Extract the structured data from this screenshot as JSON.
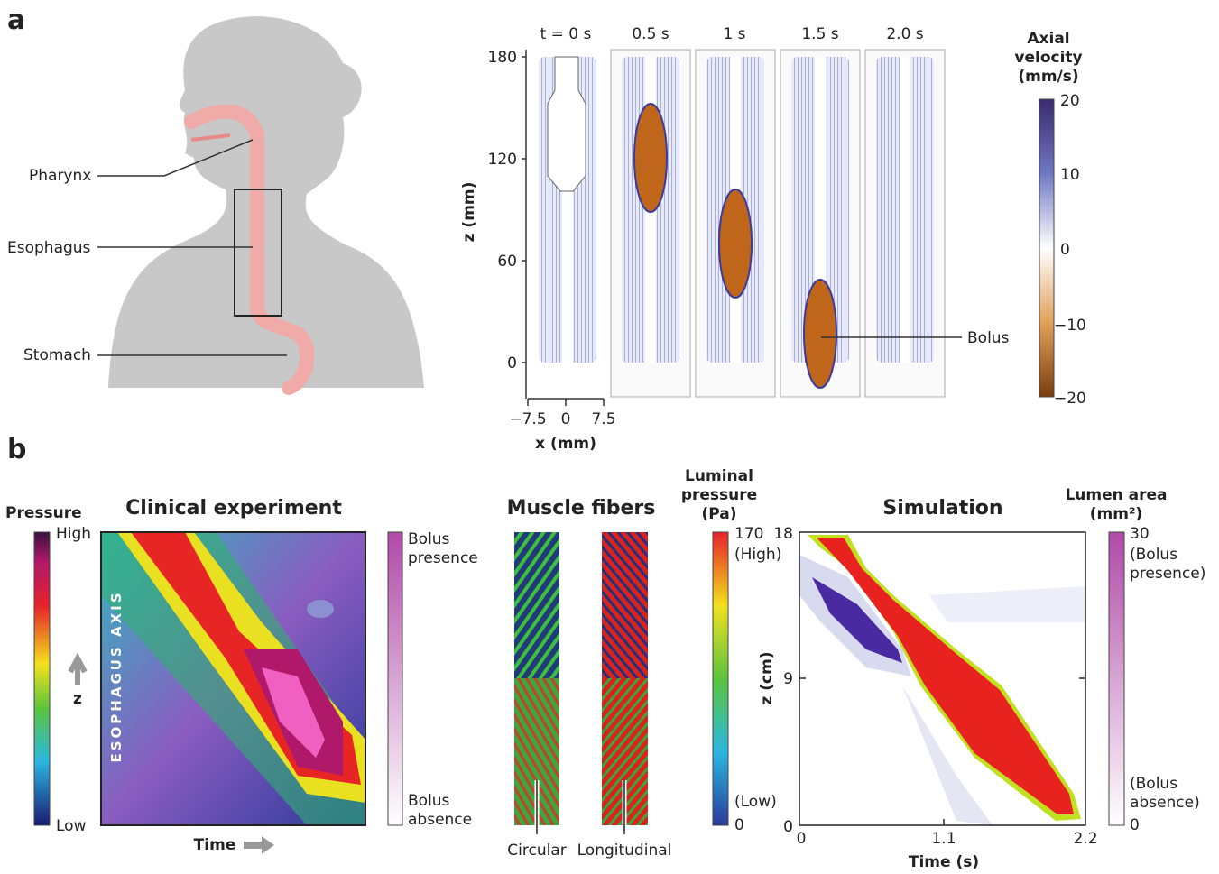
{
  "panel_a": {
    "label": "a",
    "anatomy": {
      "labels": [
        "Pharynx",
        "Esophagus",
        "Stomach"
      ]
    },
    "simulation": {
      "times": [
        "t = 0 s",
        "0.5 s",
        "1 s",
        "1.5 s",
        "2.0 s"
      ],
      "y_axis_label": "z (mm)",
      "y_ticks": [
        "180",
        "120",
        "60",
        "0"
      ],
      "x_axis_label": "x (mm)",
      "x_ticks": [
        "−7.5",
        "0",
        "7.5"
      ],
      "annotation": "Bolus"
    },
    "colorbar": {
      "title": [
        "Axial",
        "velocity",
        "(mm/s)"
      ],
      "ticks": [
        "20",
        "10",
        "0",
        "−10",
        "−20"
      ]
    }
  },
  "panel_b": {
    "label": "b",
    "clinical": {
      "title": "Clinical experiment",
      "pressure_title": "Pressure",
      "pressure_high": "High",
      "pressure_low": "Low",
      "axis_text": "ESOPHAGUS AXIS",
      "z_label": "z",
      "x_label": "Time",
      "bolus_top": [
        "Bolus",
        "presence"
      ],
      "bolus_bottom": [
        "Bolus",
        "absence"
      ]
    },
    "muscle": {
      "title": "Muscle fibers",
      "labels": [
        "Circular",
        "Longitudinal"
      ]
    },
    "simulation": {
      "title": "Simulation",
      "pressure_title": [
        "Luminal",
        "pressure",
        "(Pa)"
      ],
      "pressure_ticks": [
        "170",
        "(High)",
        "(Low)",
        "0"
      ],
      "y_label": "z (cm)",
      "y_ticks": [
        "18",
        "9",
        "0"
      ],
      "x_ticks": [
        "0",
        "1.1",
        "2.2"
      ],
      "x_label": "Time (s)",
      "area_title": [
        "Lumen area",
        "(mm²)"
      ],
      "area_labels": [
        "30",
        "(Bolus",
        "presence)",
        "(Bolus",
        "absence)",
        "0"
      ]
    }
  }
}
